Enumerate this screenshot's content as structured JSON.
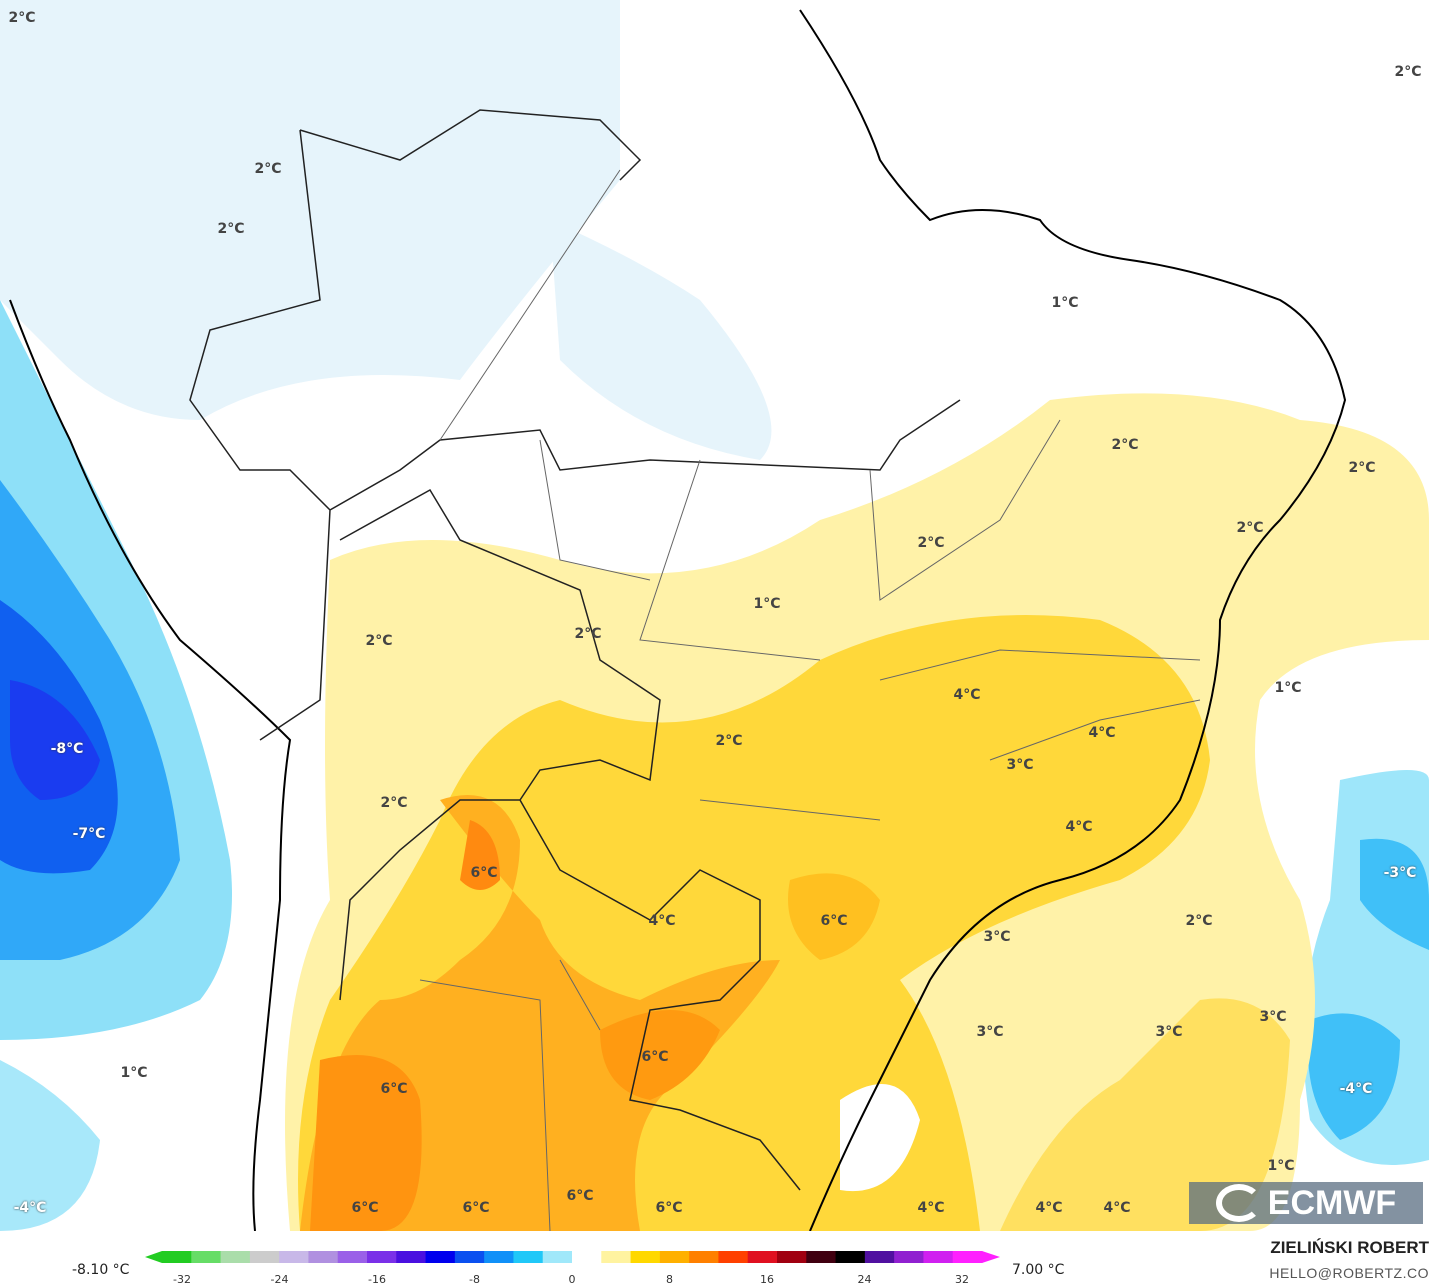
{
  "map": {
    "variable": "temperature anomaly",
    "units": "°C",
    "labels": [
      {
        "text": "2°C"
      },
      {
        "text": "2°C"
      },
      {
        "text": "2°C"
      },
      {
        "text": "2°C"
      },
      {
        "text": "1°C"
      },
      {
        "text": "2°C"
      },
      {
        "text": "2°C"
      },
      {
        "text": "2°C"
      },
      {
        "text": "2°C"
      },
      {
        "text": "1°C"
      },
      {
        "text": "2°C"
      },
      {
        "text": "2°C"
      },
      {
        "text": "1°C"
      },
      {
        "text": "4°C"
      },
      {
        "text": "2°C"
      },
      {
        "text": "3°C"
      },
      {
        "text": "4°C"
      },
      {
        "text": "-8°C"
      },
      {
        "text": "-7°C"
      },
      {
        "text": "2°C"
      },
      {
        "text": "4°C"
      },
      {
        "text": "6°C"
      },
      {
        "text": "4°C"
      },
      {
        "text": "6°C"
      },
      {
        "text": "-3°C"
      },
      {
        "text": "3°C"
      },
      {
        "text": "2°C"
      },
      {
        "text": "1°C"
      },
      {
        "text": "6°C"
      },
      {
        "text": "3°C"
      },
      {
        "text": "3°C"
      },
      {
        "text": "3°C"
      },
      {
        "text": "6°C"
      },
      {
        "text": "-4°C"
      },
      {
        "text": "6°C"
      },
      {
        "text": "6°C"
      },
      {
        "text": "6°C"
      },
      {
        "text": "6°C"
      },
      {
        "text": "4°C"
      },
      {
        "text": "4°C"
      },
      {
        "text": "4°C"
      },
      {
        "text": "1°C"
      },
      {
        "text": "-4°C"
      }
    ]
  },
  "logo": {
    "text": "ECMWF"
  },
  "legend": {
    "min_label": "-8.10 °C",
    "max_label": "7.00 °C",
    "ticks": [
      "-32",
      "-24",
      "-16",
      "-8",
      "0",
      "8",
      "16",
      "24",
      "32"
    ],
    "colors": [
      "#22cc22",
      "#66dd66",
      "#aaddaa",
      "#cccccc",
      "#c8b8e8",
      "#b090e0",
      "#9a60e8",
      "#7a30e8",
      "#4a10e0",
      "#0000ee",
      "#0a50f0",
      "#1090f8",
      "#20c8f8",
      "#a0e8fa",
      "#ffffff",
      "#fff3a0",
      "#ffd800",
      "#ffb000",
      "#ff8000",
      "#ff4000",
      "#e01020",
      "#a00010",
      "#400010",
      "#000000",
      "#5010a0",
      "#9020d0",
      "#d020f0",
      "#ff20ff"
    ]
  },
  "credits": {
    "author": "ZIELIŃSKI ROBERT",
    "email": "HELLO@ROBERTZ.CO"
  }
}
